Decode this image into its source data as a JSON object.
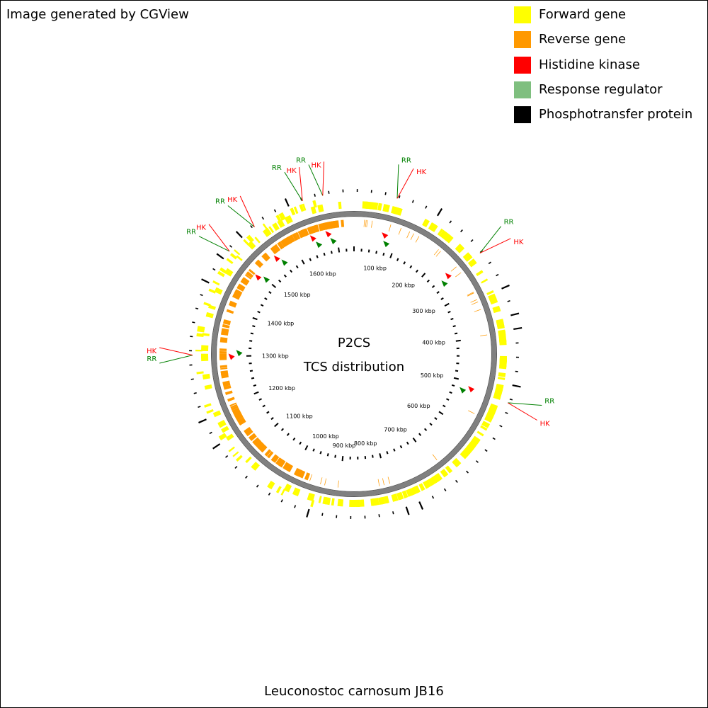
{
  "header": {
    "credit": "Image generated by CGView"
  },
  "legend": [
    {
      "label": "Forward gene",
      "color": "#FFFF00"
    },
    {
      "label": "Reverse gene",
      "color": "#FF9900"
    },
    {
      "label": "Histidine kinase",
      "color": "#FF0000"
    },
    {
      "label": "Response regulator",
      "color": "#7FBF7F"
    },
    {
      "label": "Phosphotransfer protein",
      "color": "#000000"
    }
  ],
  "map": {
    "center_title": "P2CS",
    "center_subtitle": "TCS distribution",
    "genome_length_kbp": 1740,
    "ticks": [
      "100 kbp",
      "200 kbp",
      "300 kbp",
      "400 kbp",
      "500 kbp",
      "600 kbp",
      "700 kbp",
      "800 kbp",
      "900 kbp",
      "1000 kbp",
      "1100 kbp",
      "1200 kbp",
      "1300 kbp",
      "1400 kbp",
      "1500 kbp",
      "1600 kbp"
    ],
    "colors": {
      "forward": "#FFFF00",
      "reverse": "#FF9900",
      "hk": "#FF0000",
      "rr": "#008000",
      "hk_label": "#FF0000",
      "rr_label": "#008000",
      "backbone": "#808080"
    },
    "tcs_loci": [
      {
        "hk": "HK",
        "rr": "RR",
        "position_kbp": 75
      },
      {
        "hk": "HK",
        "rr": "RR",
        "position_kbp": 248
      },
      {
        "hk": "HK",
        "rr": "RR",
        "position_kbp": 520
      },
      {
        "hk": "HK",
        "rr": "RR",
        "position_kbp": 1303
      },
      {
        "hk": "HK",
        "rr": "RR",
        "position_kbp": 1496
      },
      {
        "hk": "HK",
        "rr": "RR",
        "position_kbp": 1556
      },
      {
        "hk": "HK",
        "rr": "RR",
        "position_kbp": 1650
      },
      {
        "hk": "HK",
        "rr": "RR",
        "position_kbp": 1686
      }
    ]
  },
  "footer": {
    "organism": "Leuconostoc carnosum JB16"
  }
}
